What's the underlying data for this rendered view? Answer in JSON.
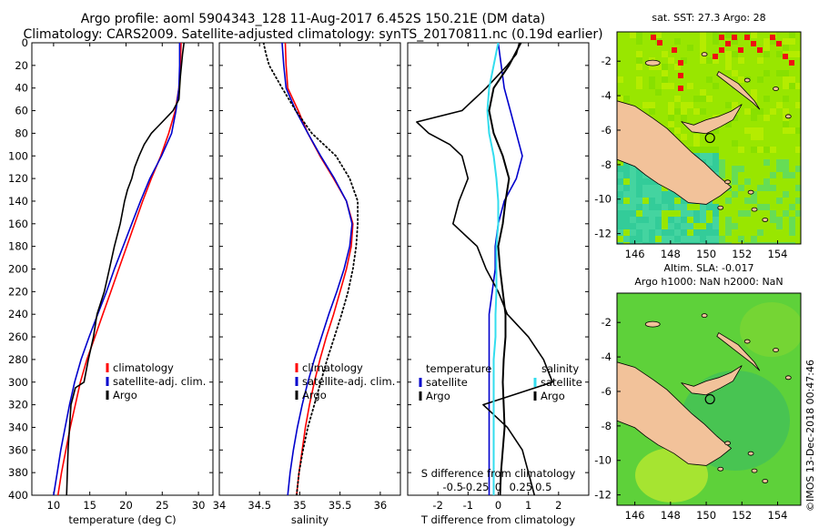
{
  "header": {
    "line1": "Argo profile: aoml 5904343_128 11-Aug-2017 6.452S 150.21E (DM data)",
    "line2": "Climatology: CARS2009. Satellite-adjusted climatology: synTS_20170811.nc (0.19d earlier)"
  },
  "credit": "©IMOS 13-Dec-2018 00:47:46",
  "colors": {
    "climatology": "#ff0000",
    "satellite": "#0000cc",
    "argo": "#000000",
    "salinity_sat": "#33ddee",
    "land": "#f2c29a"
  },
  "chart_data": [
    {
      "type": "line",
      "name": "temperature-profile",
      "xlabel": "temperature (deg C)",
      "xlim": [
        7,
        32
      ],
      "xticks": [
        10,
        15,
        20,
        25,
        30
      ],
      "ylim": [
        400,
        0
      ],
      "yticks": [
        0,
        20,
        40,
        60,
        80,
        100,
        120,
        140,
        160,
        180,
        200,
        220,
        240,
        260,
        280,
        300,
        320,
        340,
        360,
        380,
        400
      ],
      "legend": [
        "climatology",
        "satellite-adj. clim.",
        "Argo"
      ],
      "series": [
        {
          "name": "climatology",
          "depth": [
            0,
            20,
            40,
            60,
            80,
            100,
            120,
            140,
            160,
            180,
            200,
            220,
            240,
            260,
            280,
            300,
            320,
            340,
            360,
            380,
            400
          ],
          "values": [
            27.6,
            27.5,
            27.3,
            26.8,
            25.9,
            24.8,
            23.5,
            22.3,
            21.2,
            20.1,
            19.0,
            17.9,
            16.8,
            15.7,
            14.6,
            13.7,
            13.0,
            12.3,
            11.7,
            11.1,
            10.6
          ]
        },
        {
          "name": "satellite-adj. clim.",
          "depth": [
            0,
            20,
            40,
            60,
            80,
            100,
            120,
            140,
            160,
            180,
            200,
            220,
            240,
            260,
            280,
            300,
            320,
            340,
            360,
            380,
            400
          ],
          "values": [
            27.4,
            27.4,
            27.3,
            26.9,
            26.3,
            24.9,
            23.3,
            22.0,
            20.8,
            19.6,
            18.4,
            17.3,
            16.1,
            14.9,
            13.8,
            12.9,
            12.2,
            11.6,
            11.0,
            10.5,
            10.0
          ]
        },
        {
          "name": "Argo",
          "depth": [
            0,
            10,
            30,
            50,
            60,
            70,
            80,
            90,
            100,
            110,
            120,
            130,
            140,
            150,
            160,
            170,
            180,
            200,
            220,
            240,
            260,
            280,
            300,
            305,
            320,
            340,
            360,
            380,
            400
          ],
          "values": [
            28.0,
            27.8,
            27.5,
            27.3,
            26.5,
            25.0,
            23.5,
            22.5,
            21.8,
            21.2,
            20.8,
            20.2,
            19.8,
            19.5,
            19.2,
            18.8,
            18.4,
            17.7,
            17.0,
            16.0,
            15.5,
            14.8,
            14.2,
            13.0,
            12.4,
            12.2,
            12.0,
            11.9,
            11.8
          ]
        }
      ]
    },
    {
      "type": "line",
      "name": "salinity-profile",
      "xlabel": "salinity",
      "xlim": [
        34,
        36.25
      ],
      "xticks": [
        34,
        34.5,
        35,
        35.5,
        36
      ],
      "ylim": [
        400,
        0
      ],
      "legend": [
        "climatology",
        "satellite-adj. clim.",
        "Argo"
      ],
      "series": [
        {
          "name": "climatology",
          "depth": [
            0,
            20,
            40,
            60,
            80,
            100,
            120,
            140,
            160,
            180,
            200,
            220,
            240,
            260,
            280,
            300,
            320,
            340,
            360,
            380,
            400
          ],
          "values": [
            34.82,
            34.83,
            34.85,
            34.98,
            35.1,
            35.25,
            35.42,
            35.58,
            35.66,
            35.64,
            35.58,
            35.5,
            35.42,
            35.33,
            35.25,
            35.18,
            35.12,
            35.07,
            35.03,
            34.99,
            34.96
          ]
        },
        {
          "name": "satellite-adj. clim.",
          "depth": [
            0,
            20,
            40,
            60,
            80,
            100,
            120,
            140,
            160,
            180,
            200,
            220,
            240,
            260,
            280,
            300,
            320,
            340,
            360,
            380,
            400
          ],
          "values": [
            34.78,
            34.8,
            34.83,
            34.95,
            35.1,
            35.26,
            35.43,
            35.58,
            35.65,
            35.62,
            35.55,
            35.46,
            35.36,
            35.27,
            35.18,
            35.1,
            35.03,
            34.97,
            34.92,
            34.88,
            34.85
          ]
        },
        {
          "name": "Argo",
          "depth": [
            0,
            10,
            20,
            30,
            40,
            60,
            80,
            100,
            120,
            140,
            160,
            180,
            200,
            220,
            240,
            260,
            280,
            300,
            320,
            340,
            360,
            380,
            400
          ],
          "values": [
            34.55,
            34.58,
            34.62,
            34.7,
            34.78,
            34.95,
            35.15,
            35.45,
            35.62,
            35.72,
            35.72,
            35.7,
            35.66,
            35.6,
            35.52,
            35.43,
            35.34,
            35.26,
            35.18,
            35.1,
            35.04,
            34.99,
            34.96
          ]
        }
      ]
    },
    {
      "type": "line",
      "name": "difference-profile",
      "xlabel": "T difference from climatology",
      "top_axis_label": "S difference from climatology",
      "xlim": [
        -3,
        3
      ],
      "xticks": [
        -2,
        -1,
        0,
        1,
        2
      ],
      "sticks": [
        -0.5,
        -0.25,
        0,
        0.25,
        0.5
      ],
      "ylim": [
        400,
        0
      ],
      "legend_left_title": "temperature",
      "legend_right_title": "salinity",
      "legend": [
        "satellite",
        "Argo",
        "satellite",
        "Argo"
      ],
      "series": [
        {
          "name": "T satellite",
          "depth": [
            0,
            20,
            40,
            60,
            80,
            100,
            120,
            140,
            160,
            180,
            200,
            220,
            240,
            260,
            280,
            300,
            320,
            340,
            360,
            380,
            400
          ],
          "values": [
            0.0,
            0.1,
            0.2,
            0.4,
            0.6,
            0.8,
            0.6,
            0.2,
            0.0,
            -0.1,
            -0.1,
            -0.2,
            -0.3,
            -0.3,
            -0.3,
            -0.3,
            -0.3,
            -0.3,
            -0.3,
            -0.3,
            -0.3
          ]
        },
        {
          "name": "T Argo",
          "depth": [
            0,
            10,
            20,
            40,
            60,
            70,
            80,
            90,
            100,
            120,
            140,
            160,
            180,
            200,
            220,
            240,
            260,
            280,
            300,
            320,
            340,
            360,
            380,
            400
          ],
          "values": [
            0.7,
            0.6,
            0.3,
            -0.4,
            -1.2,
            -2.7,
            -2.3,
            -1.6,
            -1.2,
            -1.0,
            -1.3,
            -1.5,
            -0.7,
            -0.4,
            0.0,
            0.3,
            1.0,
            1.5,
            1.8,
            -0.5,
            0.3,
            0.8,
            1.0,
            1.2
          ]
        },
        {
          "name": "S satellite",
          "depth": [
            0,
            20,
            40,
            60,
            80,
            100,
            120,
            140,
            160,
            180,
            200,
            220,
            240,
            260,
            280,
            300,
            320,
            340,
            360,
            380,
            400
          ],
          "values": [
            0.0,
            -0.05,
            -0.1,
            -0.12,
            -0.1,
            -0.05,
            -0.02,
            0.0,
            0.0,
            -0.02,
            -0.02,
            -0.02,
            -0.03,
            -0.03,
            -0.05,
            -0.05,
            -0.05,
            -0.05,
            -0.05,
            -0.05,
            -0.05
          ]
        },
        {
          "name": "S Argo",
          "depth": [
            0,
            20,
            40,
            60,
            80,
            100,
            120,
            140,
            160,
            180,
            200,
            220,
            240,
            260,
            280,
            300,
            320,
            340,
            360,
            380,
            400
          ],
          "values": [
            0.25,
            0.12,
            -0.05,
            -0.1,
            -0.05,
            0.05,
            0.12,
            0.08,
            0.05,
            0.0,
            0.02,
            0.05,
            0.08,
            0.08,
            0.06,
            0.05,
            0.06,
            0.07,
            0.05,
            0.03,
            0.02
          ]
        }
      ]
    },
    {
      "type": "heatmap",
      "name": "sst-map",
      "title": "sat. SST: 27.3 Argo: 28",
      "xticks": [
        146,
        148,
        150,
        152,
        154
      ],
      "yticks": [
        -2,
        -4,
        -6,
        -8,
        -10,
        -12
      ],
      "xlim": [
        145,
        155.3
      ],
      "ylim": [
        -12.6,
        -0.3
      ],
      "argo_position": [
        150.21,
        -6.452
      ]
    },
    {
      "type": "heatmap",
      "name": "sla-map",
      "title": "Altim. SLA: -0.017",
      "subtitle": "Argo h1000: NaN h2000: NaN",
      "xticks": [
        146,
        148,
        150,
        152,
        154
      ],
      "yticks": [
        -2,
        -4,
        -6,
        -8,
        -10,
        -12
      ],
      "xlim": [
        145,
        155.3
      ],
      "ylim": [
        -12.6,
        -0.3
      ],
      "argo_position": [
        150.21,
        -6.452
      ]
    }
  ]
}
